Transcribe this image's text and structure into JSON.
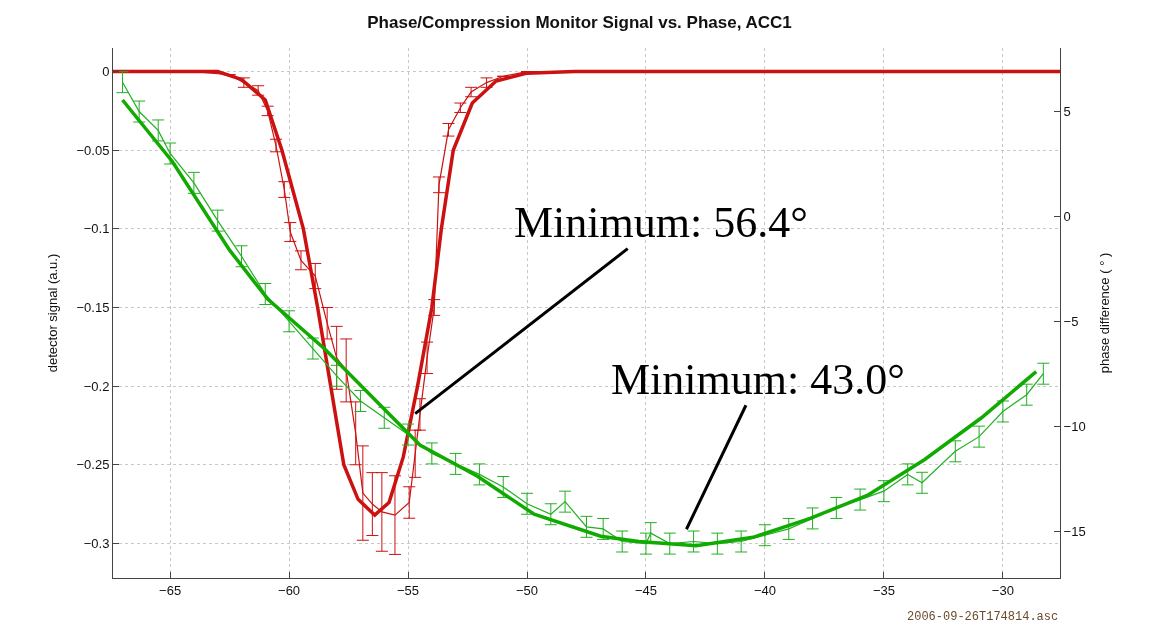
{
  "chart_data": {
    "type": "line",
    "title": "Phase/Compression Monitor Signal vs. Phase, ACC1",
    "ylabel": "detector signal (a.u.)",
    "y2label": "phase difference ( ° )",
    "series": [
      {
        "color": "#cc1111",
        "x": [
          -67.2,
          -64,
          -62.5,
          -61.9,
          -61.3,
          -60.9,
          -60.55,
          -60.2,
          -59.95,
          -59.5,
          -58.9,
          -58.4,
          -58.0,
          -57.6,
          -57.2,
          -56.9,
          -56.5,
          -56.1,
          -55.55,
          -54.95,
          -54.7,
          -54.5,
          -54.2,
          -53.9,
          -53.7,
          -53.3,
          -52.8,
          -52.35,
          -51.7,
          -51,
          -50,
          -45,
          -40,
          -35,
          -30,
          -27.8
        ],
        "values": [
          0,
          0,
          -0.002,
          -0.007,
          -0.012,
          -0.025,
          -0.047,
          -0.075,
          -0.102,
          -0.12,
          -0.13,
          -0.16,
          -0.182,
          -0.19,
          -0.23,
          -0.268,
          -0.275,
          -0.28,
          -0.282,
          -0.274,
          -0.243,
          -0.218,
          -0.182,
          -0.15,
          -0.072,
          -0.037,
          -0.023,
          -0.013,
          -0.007,
          -0.003,
          0,
          0,
          0,
          0,
          0,
          0
        ],
        "errors": [
          null,
          null,
          null,
          0.003,
          0.003,
          0.003,
          0.004,
          0.005,
          0.006,
          0.006,
          0.008,
          0.01,
          0.02,
          0.02,
          0.02,
          0.03,
          0.02,
          0.025,
          0.025,
          0.01,
          0.015,
          0.01,
          0.01,
          0.005,
          0.005,
          0.004,
          0.003,
          0.003,
          0.003,
          null,
          null,
          null,
          null,
          null,
          null,
          null
        ]
      },
      {
        "color": "#cc1111",
        "x": [
          -67.4,
          -63,
          -62,
          -61,
          -60.3,
          -59.4,
          -58.8,
          -58.25,
          -57.7,
          -57.1,
          -56.4,
          -55.8,
          -55.2,
          -54.6,
          -54.0,
          -53.6,
          -53.1,
          -52.3,
          -51.3,
          -50,
          -48,
          -27.6
        ],
        "values": [
          0,
          0,
          -0.005,
          -0.018,
          -0.05,
          -0.1,
          -0.15,
          -0.2,
          -0.25,
          -0.272,
          -0.282,
          -0.274,
          -0.245,
          -0.2,
          -0.15,
          -0.1,
          -0.05,
          -0.02,
          -0.006,
          -0.001,
          0,
          0
        ]
      },
      {
        "color": "#22b022",
        "axis": "y2",
        "x": [
          -67.0,
          -66.3,
          -65.5,
          -65,
          -64,
          -63,
          -62,
          -61,
          -60,
          -59,
          -58,
          -57,
          -56,
          -55,
          -54,
          -53,
          -52,
          -51,
          -50,
          -49,
          -48.4,
          -47.5,
          -46.8,
          -46,
          -45,
          -44.8,
          -44,
          -43,
          -42,
          -41,
          -40,
          -39,
          -38,
          -37,
          -36,
          -35,
          -34,
          -33.4,
          -32,
          -31,
          -30,
          -29,
          -28.3
        ],
        "values": [
          6.4,
          5.0,
          4.1,
          3.0,
          1.6,
          -0.2,
          -1.9,
          -3.7,
          -5.0,
          -6.3,
          -7.6,
          -8.8,
          -9.6,
          -10.4,
          -11.3,
          -11.8,
          -12.3,
          -12.9,
          -13.7,
          -14.2,
          -13.6,
          -14.8,
          -14.9,
          -15.5,
          -15.6,
          -15.1,
          -15.6,
          -15.5,
          -15.6,
          -15.5,
          -15.2,
          -14.9,
          -14.4,
          -13.9,
          -13.5,
          -13.1,
          -12.3,
          -12.7,
          -11.2,
          -10.5,
          -9.3,
          -8.5,
          -7.5
        ],
        "errors": [
          0.5,
          0.5,
          0.5,
          0.5,
          0.5,
          0.5,
          0.5,
          0.5,
          0.5,
          0.5,
          0.5,
          0.5,
          0.5,
          0.5,
          0.5,
          0.5,
          0.5,
          0.5,
          0.5,
          0.5,
          0.5,
          0.5,
          0.5,
          0.5,
          0.5,
          0.5,
          0.5,
          0.5,
          0.5,
          0.5,
          0.5,
          0.5,
          0.5,
          0.5,
          0.5,
          0.5,
          0.5,
          0.5,
          0.5,
          0.5,
          0.5,
          0.5,
          0.5
        ]
      },
      {
        "color": "#11aa00",
        "axis": "y2",
        "x": [
          -67.0,
          -64.9,
          -62.5,
          -60.9,
          -58.5,
          -56.1,
          -54.5,
          -52.1,
          -49.7,
          -46.9,
          -45.3,
          -42.9,
          -40.5,
          -38.1,
          -35.7,
          -33.3,
          -30.9,
          -28.6
        ],
        "values": [
          5.55,
          2.61,
          -1.61,
          -3.94,
          -6.32,
          -9.07,
          -10.9,
          -12.38,
          -14.2,
          -15.25,
          -15.5,
          -15.7,
          -15.3,
          -14.4,
          -13.3,
          -11.6,
          -9.6,
          -7.4
        ]
      }
    ],
    "xlim": [
      -67.4,
      -27.6
    ],
    "xticks": [
      -65,
      -60,
      -55,
      -50,
      -45,
      -40,
      -35,
      -30
    ],
    "ylim": [
      -0.322,
      0.015
    ],
    "yticks": [
      0,
      -0.05,
      -0.1,
      -0.15,
      -0.2,
      -0.25,
      -0.3
    ],
    "y2lim": [
      -17.24,
      8.03
    ],
    "y2ticks": [
      5,
      0,
      -5,
      -10,
      -15
    ],
    "annotations": [
      {
        "text": "Minimum: 56.4°",
        "x": -54.7,
        "y": -0.2175
      },
      {
        "text": "Minimum: 43.0°",
        "x": -43.3,
        "y": -0.291
      },
      "2006-09-26T174814.asc"
    ],
    "grid": true,
    "marker": "none",
    "line_style": "solid"
  }
}
